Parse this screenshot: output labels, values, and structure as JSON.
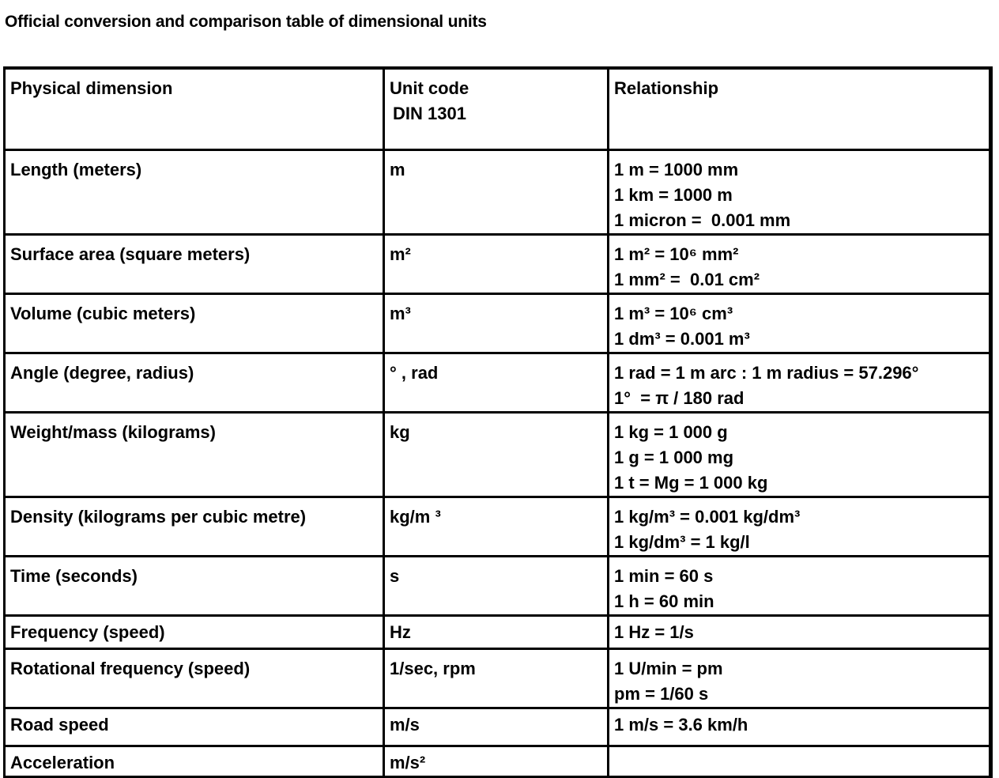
{
  "title": "Official conversion and comparison table of dimensional units",
  "headers": {
    "dimension": "Physical dimension",
    "unit_code": "Unit code",
    "unit_code_sub": "DIN 1301",
    "relationship": "Relationship"
  },
  "rows": [
    {
      "dimension": "Length (meters)",
      "unit": "m",
      "rel": [
        "1 m = 1000 mm",
        "1 km = 1000 m",
        "1 micron =  0.001 mm"
      ]
    },
    {
      "dimension": "Surface area (square meters)",
      "unit": "m²",
      "rel": [
        "1 m² = 10⁶ mm²",
        "1 mm² =  0.01 cm²"
      ]
    },
    {
      "dimension": "Volume (cubic meters)",
      "unit": "m³",
      "rel": [
        "1 m³ = 10⁶ cm³",
        "1 dm³ = 0.001 m³"
      ]
    },
    {
      "dimension": "Angle (degree, radius)",
      "unit": "° , rad",
      "rel": [
        "1 rad = 1 m arc : 1 m radius = 57.296°",
        "1°  = π / 180 rad"
      ]
    },
    {
      "dimension": "Weight/mass (kilograms)",
      "unit": "kg",
      "rel": [
        "1 kg = 1 000 g",
        "1 g = 1 000 mg",
        "1 t = Mg = 1 000 kg"
      ]
    },
    {
      "dimension": "Density (kilograms per cubic metre)",
      "unit": "kg/m ³",
      "rel": [
        "1 kg/m³ = 0.001 kg/dm³",
        "1 kg/dm³ = 1 kg/l"
      ]
    },
    {
      "dimension": "Time (seconds)",
      "unit": "s",
      "rel": [
        "1 min = 60 s",
        "1 h = 60 min"
      ]
    },
    {
      "dimension": "Frequency (speed)",
      "unit": "Hz",
      "rel": [
        "1 Hz = 1/s"
      ]
    },
    {
      "dimension": "Rotational frequency (speed)",
      "unit": "1/sec, rpm",
      "rel": [
        "1 U/min = pm",
        "pm = 1/60 s"
      ]
    },
    {
      "dimension": "Road speed",
      "unit": "m/s",
      "rel": [
        "1 m/s = 3.6 km/h"
      ]
    },
    {
      "dimension": "Acceleration",
      "unit": "m/s²",
      "rel": []
    }
  ]
}
